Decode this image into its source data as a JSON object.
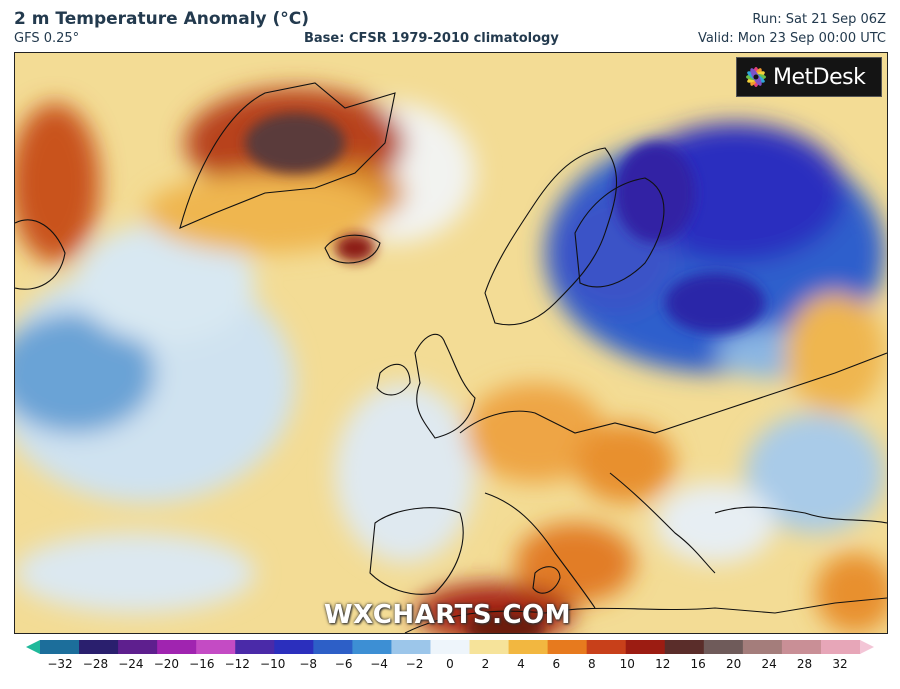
{
  "header": {
    "title": "2 m Temperature Anomaly (°C)",
    "model": "GFS 0.25°",
    "base": "Base: CFSR 1979-2010 climatology",
    "run": "Run: Sat 21 Sep 06Z",
    "valid": "Valid: Mon 23 Sep 00:00 UTC"
  },
  "logo": {
    "text": "MetDesk",
    "icon": "metdesk-flower-icon"
  },
  "watermark": "WXCHARTS.COM",
  "legend": {
    "ticks": [
      "−32",
      "−28",
      "−24",
      "−20",
      "−16",
      "−12",
      "−10",
      "−8",
      "−6",
      "−4",
      "−2",
      "0",
      "2",
      "4",
      "6",
      "8",
      "10",
      "12",
      "16",
      "20",
      "24",
      "28",
      "32"
    ],
    "colors": [
      "#1fb99a",
      "#1c6e9b",
      "#2a1f6e",
      "#5e1f8e",
      "#a024b0",
      "#c44bc4",
      "#4a2aa8",
      "#2b2fbd",
      "#2d5fc7",
      "#3d8fd4",
      "#9cc6ea",
      "#eef5fb",
      "#f6e39a",
      "#f2b740",
      "#e77a1e",
      "#c8401a",
      "#9c1c12",
      "#5a2d2a",
      "#6f5b5a",
      "#a47d7b",
      "#c98f96",
      "#e7a6b8",
      "#f3c5d6"
    ]
  }
}
